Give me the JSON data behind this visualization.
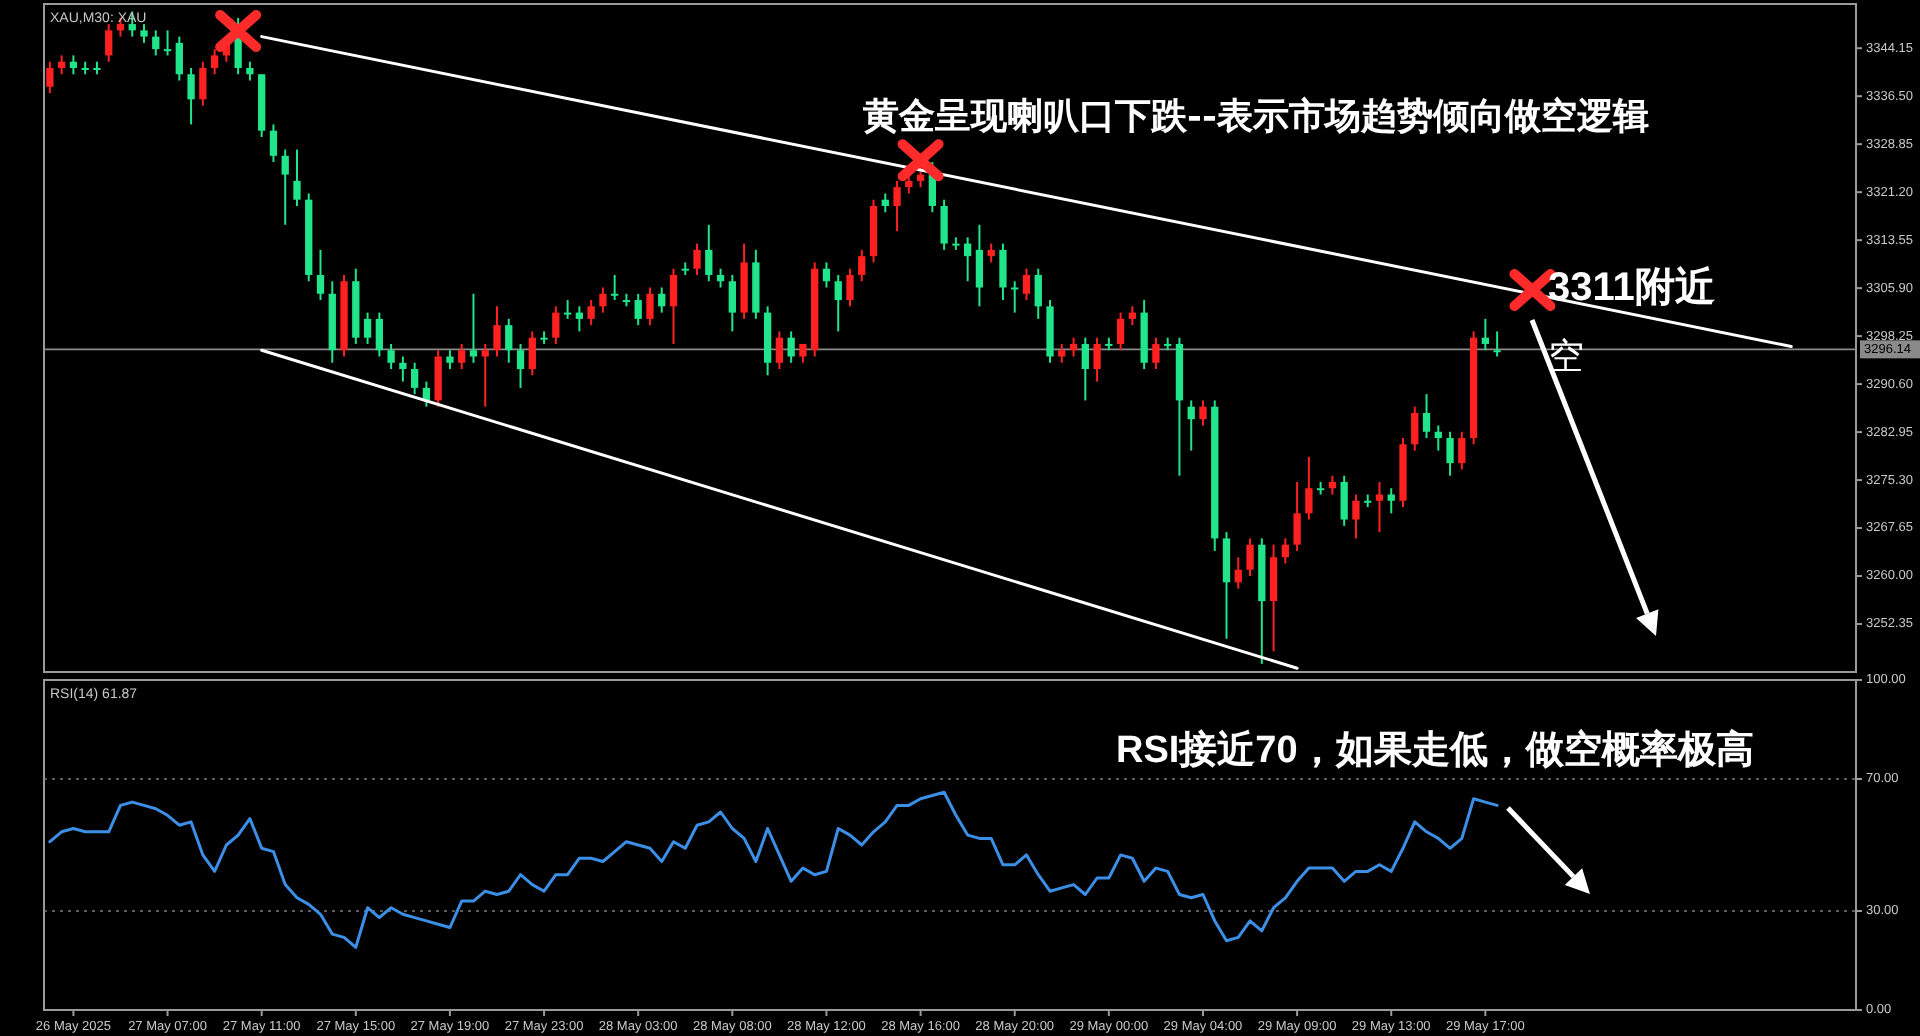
{
  "chart_data": [
    {
      "type": "candlestick",
      "title": "XAU,M30: XAU",
      "categories": [
        null,
        null,
        null,
        null,
        null,
        null,
        null,
        null,
        null,
        null,
        null,
        null,
        null,
        null,
        null,
        null,
        null,
        null,
        null,
        null,
        null,
        null,
        null,
        null,
        null,
        null,
        null,
        null,
        null,
        null,
        null,
        null,
        null,
        null,
        null,
        null,
        null,
        null,
        null,
        null,
        null,
        null,
        null,
        null,
        null,
        null,
        null,
        null,
        null,
        null,
        null,
        null,
        null,
        null,
        null,
        null,
        null,
        null,
        null,
        null,
        null,
        null,
        null,
        null,
        null,
        null,
        null,
        null,
        null,
        null,
        null,
        null,
        null,
        null,
        null,
        null,
        null,
        null,
        null,
        null,
        null,
        null,
        null,
        null,
        null,
        null,
        null,
        null,
        null,
        null,
        null,
        null,
        null,
        null,
        null,
        null,
        null,
        null,
        null,
        null,
        null,
        null,
        null,
        null,
        null,
        null,
        null,
        null,
        null,
        null,
        null,
        null,
        null,
        null,
        null,
        null,
        null,
        null,
        null,
        null,
        null,
        null,
        null,
        null,
        null,
        null,
        null,
        null,
        null,
        null,
        null,
        null,
        null,
        null,
        null,
        null,
        null,
        null,
        null,
        null,
        null,
        null,
        null,
        null,
        null,
        null,
        null,
        null,
        null,
        null,
        null,
        null,
        null,
        null
      ],
      "ylim": [
        3244.7,
        3351.2
      ],
      "yticks": [
        3344.15,
        {
          "value": 3336.5,
          "label": "3336.50"
        },
        3328.85,
        {
          "value": 3321.2,
          "label": "3321.20"
        },
        3313.55,
        {
          "value": 3305.9,
          "label": "3305.90"
        },
        3298.25,
        {
          "value": 3290.6,
          "label": "3290.60"
        },
        3282.95,
        {
          "value": 3275.3,
          "label": "3275.30"
        },
        3267.65,
        {
          "value": 3260,
          "label": "3260.00"
        },
        3252.35
      ],
      "tick_labels": "y",
      "series": [
        {
          "ohlc": [
            [
              3338,
              3342,
              3337,
              3341
            ],
            [
              3341,
              3343,
              3340,
              3342
            ],
            [
              3342,
              3343,
              3340,
              3341
            ],
            [
              3341,
              3342,
              3340,
              3341
            ],
            [
              3341,
              3342,
              3340,
              3341
            ],
            [
              3343,
              3348,
              3342,
              3347
            ],
            [
              3347,
              3349,
              3346,
              3348
            ],
            [
              3348,
              3350,
              3346,
              3347
            ],
            [
              3347,
              3348,
              3345,
              3346
            ],
            [
              3346,
              3347,
              3343,
              3344
            ],
            [
              3344,
              3347,
              3343,
              3344
            ],
            [
              3345,
              3346,
              3339,
              3340
            ],
            [
              3340,
              3341,
              3332,
              3336
            ],
            [
              3336,
              3342,
              3335,
              3341
            ],
            [
              3341,
              3344,
              3340,
              3343
            ],
            [
              3343,
              3346,
              3342,
              3345
            ],
            [
              3347,
              3349,
              3340,
              3341
            ],
            [
              3341,
              3342,
              3339,
              3340
            ],
            [
              3340,
              3340,
              3330,
              3331
            ],
            [
              3331,
              3332,
              3326,
              3327
            ],
            [
              3327,
              3328,
              3316,
              3324
            ],
            [
              3323,
              3328,
              3319,
              3320
            ],
            [
              3320,
              3321,
              3307,
              3308
            ],
            [
              3308,
              3312,
              3304,
              3305
            ],
            [
              3305,
              3307,
              3294,
              3296
            ],
            [
              3296,
              3308,
              3295,
              3307
            ],
            [
              3307,
              3309,
              3297,
              3298
            ],
            [
              3301,
              3302,
              3297,
              3298
            ],
            [
              3301,
              3302,
              3295,
              3296
            ],
            [
              3296,
              3297,
              3293,
              3294
            ],
            [
              3294,
              3295,
              3291,
              3293
            ],
            [
              3293,
              3294,
              3289,
              3290
            ],
            [
              3290,
              3291,
              3287,
              3288
            ],
            [
              3288,
              3296,
              3287,
              3295
            ],
            [
              3295,
              3296,
              3293,
              3294
            ],
            [
              3294,
              3297,
              3293,
              3296
            ],
            [
              3296,
              3305,
              3294,
              3295
            ],
            [
              3295,
              3297,
              3287,
              3296
            ],
            [
              3296,
              3303,
              3295,
              3300
            ],
            [
              3300,
              3301,
              3294,
              3296
            ],
            [
              3296,
              3297,
              3290,
              3293
            ],
            [
              3293,
              3299,
              3292,
              3298
            ],
            [
              3298,
              3299,
              3297,
              3298
            ],
            [
              3298,
              3303,
              3297,
              3302
            ],
            [
              3302,
              3304,
              3301,
              3302
            ],
            [
              3302,
              3303,
              3299,
              3301
            ],
            [
              3301,
              3304,
              3300,
              3303
            ],
            [
              3303,
              3306,
              3302,
              3305
            ],
            [
              3305,
              3308,
              3304,
              3305
            ],
            [
              3304,
              3305,
              3303,
              3304
            ],
            [
              3304,
              3305,
              3300,
              3301
            ],
            [
              3301,
              3306,
              3300,
              3305
            ],
            [
              3305,
              3306,
              3302,
              3303
            ],
            [
              3303,
              3309,
              3297,
              3308
            ],
            [
              3309,
              3310,
              3308,
              3309
            ],
            [
              3309,
              3313,
              3308,
              3312
            ],
            [
              3312,
              3316,
              3307,
              3308
            ],
            [
              3308,
              3309,
              3306,
              3307
            ],
            [
              3307,
              3308,
              3299,
              3302
            ],
            [
              3302,
              3313,
              3301,
              3310
            ],
            [
              3310,
              3312,
              3301,
              3302
            ],
            [
              3302,
              3303,
              3292,
              3294
            ],
            [
              3294,
              3299,
              3293,
              3298
            ],
            [
              3298,
              3299,
              3294,
              3295
            ],
            [
              3295,
              3297,
              3294,
              3297
            ],
            [
              3296,
              3310,
              3295,
              3309
            ],
            [
              3309,
              3310,
              3306,
              3307
            ],
            [
              3307,
              3308,
              3299,
              3304
            ],
            [
              3304,
              3309,
              3303,
              3308
            ],
            [
              3308,
              3312,
              3307,
              3311
            ],
            [
              3311,
              3320,
              3310,
              3319
            ],
            [
              3320,
              3321,
              3318,
              3319
            ],
            [
              3319,
              3323,
              3315,
              3322
            ],
            [
              3322,
              3325,
              3321,
              3323
            ],
            [
              3323,
              3326,
              3322,
              3324
            ],
            [
              3324,
              3326,
              3318,
              3319
            ],
            [
              3319,
              3320,
              3312,
              3313
            ],
            [
              3313,
              3314,
              3312,
              3313
            ],
            [
              3313,
              3314,
              3307,
              3311
            ],
            [
              3312,
              3316,
              3303,
              3306
            ],
            [
              3311,
              3313,
              3310,
              3312
            ],
            [
              3312,
              3313,
              3304,
              3306
            ],
            [
              3306,
              3307,
              3302,
              3306
            ],
            [
              3305,
              3309,
              3304,
              3308
            ],
            [
              3308,
              3309,
              3301,
              3303
            ],
            [
              3303,
              3304,
              3294,
              3295
            ],
            [
              3295,
              3297,
              3294,
              3296
            ],
            [
              3296,
              3298,
              3295,
              3297
            ],
            [
              3297,
              3298,
              3288,
              3293
            ],
            [
              3293,
              3298,
              3291,
              3297
            ],
            [
              3297,
              3298,
              3296,
              3297
            ],
            [
              3297,
              3302,
              3296,
              3301
            ],
            [
              3301,
              3303,
              3300,
              3302
            ],
            [
              3302,
              3304,
              3293,
              3294
            ],
            [
              3294,
              3298,
              3293,
              3297
            ],
            [
              3297,
              3298,
              3296,
              3297
            ],
            [
              3297,
              3298,
              3276,
              3288
            ],
            [
              3287,
              3288,
              3280,
              3285
            ],
            [
              3285,
              3288,
              3284,
              3287
            ],
            [
              3287,
              3288,
              3264,
              3266
            ],
            [
              3266,
              3267,
              3250,
              3259
            ],
            [
              3259,
              3263,
              3258,
              3261
            ],
            [
              3261,
              3266,
              3260,
              3265
            ],
            [
              3265,
              3266,
              3246,
              3256
            ],
            [
              3256,
              3265,
              3248,
              3263
            ],
            [
              3263,
              3266,
              3262,
              3265
            ],
            [
              3265,
              3275,
              3264,
              3270
            ],
            [
              3270,
              3279,
              3269,
              3274
            ],
            [
              3274,
              3275,
              3273,
              3274
            ],
            [
              3274,
              3276,
              3273,
              3275
            ],
            [
              3275,
              3276,
              3268,
              3269
            ],
            [
              3269,
              3273,
              3266,
              3272
            ],
            [
              3272,
              3273,
              3271,
              3272
            ],
            [
              3272,
              3275,
              3267,
              3273
            ],
            [
              3273,
              3274,
              3270,
              3272
            ],
            [
              3272,
              3282,
              3271,
              3281
            ],
            [
              3281,
              3287,
              3280,
              3286
            ],
            [
              3286,
              3289,
              3282,
              3283
            ],
            [
              3283,
              3284,
              3280,
              3282
            ],
            [
              3282,
              3283,
              3276,
              3278
            ],
            [
              3278,
              3283,
              3277,
              3282
            ],
            [
              3282,
              3299,
              3281,
              3298
            ],
            [
              3298,
              3301,
              3296,
              3297
            ],
            [
              3296,
              3299,
              3295,
              3296
            ],
            null,
            null,
            null,
            null,
            null,
            null,
            null,
            null,
            null,
            null,
            null,
            null,
            null,
            null,
            null,
            null,
            null,
            null,
            null,
            null,
            null,
            null,
            null,
            null,
            null,
            null,
            null,
            null,
            null,
            null
          ],
          "colors": [
            "#ff2020",
            "#ff2020",
            "#21e58b",
            "#21e58b",
            "#21e58b",
            "#ff2020",
            "#ff2020",
            "#21e58b",
            "#21e58b",
            "#21e58b",
            "#21e58b",
            "#21e58b",
            "#21e58b",
            "#ff2020",
            "#ff2020",
            "#ff2020",
            "#21e58b",
            "#21e58b",
            "#21e58b",
            "#21e58b",
            "#21e58b",
            "#21e58b",
            "#21e58b",
            "#21e58b",
            "#21e58b",
            "#ff2020",
            "#21e58b",
            "#21e58b",
            "#21e58b",
            "#21e58b",
            "#21e58b",
            "#21e58b",
            "#21e58b",
            "#ff2020",
            "#21e58b",
            "#ff2020",
            "#21e58b",
            "#ff2020",
            "#ff2020",
            "#21e58b",
            "#21e58b",
            "#ff2020",
            "#21e58b",
            "#ff2020",
            "#21e58b",
            "#21e58b",
            "#ff2020",
            "#ff2020",
            "#21e58b",
            "#21e58b",
            "#21e58b",
            "#ff2020",
            "#21e58b",
            "#ff2020",
            "#21e58b",
            "#ff2020",
            "#21e58b",
            "#21e58b",
            "#21e58b",
            "#ff2020",
            "#21e58b",
            "#21e58b",
            "#ff2020",
            "#21e58b",
            "#ff2020",
            "#ff2020",
            "#21e58b",
            "#21e58b",
            "#ff2020",
            "#ff2020",
            "#ff2020",
            "#21e58b",
            "#ff2020",
            "#ff2020",
            "#ff2020",
            "#21e58b",
            "#21e58b",
            "#21e58b",
            "#21e58b",
            "#21e58b",
            "#ff2020",
            "#21e58b",
            "#21e58b",
            "#ff2020",
            "#21e58b",
            "#21e58b",
            "#ff2020",
            "#ff2020",
            "#21e58b",
            "#ff2020",
            "#21e58b",
            "#ff2020",
            "#ff2020",
            "#21e58b",
            "#ff2020",
            "#21e58b",
            "#21e58b",
            "#21e58b",
            "#ff2020",
            "#21e58b",
            "#21e58b",
            "#ff2020",
            "#ff2020",
            "#21e58b",
            "#ff2020",
            "#ff2020",
            "#ff2020",
            "#ff2020",
            "#21e58b",
            "#ff2020",
            "#21e58b",
            "#ff2020",
            "#21e58b",
            "#ff2020",
            "#21e58b",
            "#ff2020",
            "#ff2020",
            "#21e58b",
            "#21e58b",
            "#21e58b",
            "#ff2020",
            "#ff2020",
            "#21e58b",
            "#21e58b",
            null,
            null,
            null,
            null,
            null,
            null,
            null,
            null,
            null,
            null,
            null,
            null,
            null,
            null,
            null,
            null,
            null,
            null,
            null,
            null,
            null,
            null,
            null,
            null,
            null,
            null,
            null,
            null,
            null,
            null
          ]
        },
        {
          "type": "line",
          "color": "#ffffff",
          "values": [
            null,
            null,
            null,
            null,
            null,
            null,
            null,
            null,
            null,
            null,
            null,
            null,
            null,
            null,
            null,
            null,
            null,
            null,
            3346,
            null,
            null,
            null,
            null,
            null,
            null,
            null,
            null,
            null,
            null,
            null,
            null,
            null,
            null,
            null,
            null,
            null,
            null,
            null,
            null,
            null,
            null,
            null,
            null,
            null,
            null,
            null,
            null,
            null,
            null,
            null,
            null,
            null,
            null,
            null,
            null,
            null,
            null,
            null,
            null,
            null,
            null,
            null,
            null,
            null,
            null,
            null,
            null,
            null,
            null,
            null,
            null,
            null,
            null,
            null,
            null,
            null,
            null,
            null,
            null,
            null,
            null,
            null,
            null,
            null,
            null,
            null,
            null,
            null,
            null,
            null,
            null,
            null,
            null,
            null,
            null,
            null,
            null,
            null,
            null,
            null,
            null,
            null,
            null,
            null,
            null,
            null,
            null,
            null,
            null,
            null,
            null,
            null,
            null,
            null,
            null,
            null,
            null,
            null,
            null,
            null,
            null,
            null,
            null,
            null,
            null,
            null,
            null,
            null,
            null,
            null,
            null,
            null,
            null,
            null,
            null,
            null,
            null,
            null,
            null,
            null,
            null,
            null,
            null,
            null,
            null,
            null,
            null,
            null,
            3296.6,
            null,
            null,
            null,
            null,
            null
          ]
        },
        {
          "type": "line",
          "color": "#ffffff",
          "values": [
            null,
            null,
            null,
            null,
            null,
            null,
            null,
            null,
            null,
            null,
            null,
            null,
            null,
            null,
            null,
            null,
            null,
            null,
            3296,
            null,
            null,
            null,
            null,
            null,
            null,
            null,
            null,
            null,
            null,
            null,
            null,
            null,
            null,
            null,
            null,
            null,
            null,
            null,
            null,
            null,
            null,
            null,
            null,
            null,
            null,
            null,
            null,
            null,
            null,
            null,
            null,
            null,
            null,
            null,
            null,
            null,
            null,
            null,
            null,
            null,
            null,
            null,
            null,
            null,
            null,
            null,
            null,
            null,
            null,
            null,
            null,
            null,
            null,
            null,
            null,
            null,
            null,
            null,
            null,
            null,
            null,
            null,
            null,
            null,
            null,
            null,
            null,
            null,
            null,
            null,
            null,
            null,
            null,
            null,
            null,
            null,
            null,
            null,
            null,
            null,
            null,
            null,
            null,
            null,
            null,
            null,
            3245.3,
            null,
            null,
            null,
            null,
            null,
            null,
            null,
            null,
            null,
            null,
            null,
            null,
            null,
            null,
            null,
            null,
            null,
            null,
            null,
            null,
            null,
            null,
            null,
            null,
            null,
            null,
            null,
            null,
            null,
            null,
            null,
            null,
            null,
            null,
            null,
            null,
            null,
            null,
            null,
            null,
            null,
            null,
            null,
            null,
            null,
            null,
            null
          ]
        },
        {
          "type": "scatter",
          "color": "#ff2a2a",
          "marker": "cross",
          "values": [
            null,
            null,
            null,
            null,
            null,
            null,
            null,
            null,
            null,
            null,
            null,
            null,
            null,
            null,
            null,
            null,
            3346.9,
            null,
            null,
            null,
            null,
            null,
            null,
            null,
            null,
            null,
            null,
            null,
            null,
            null,
            null,
            null,
            null,
            null,
            null,
            null,
            null,
            null,
            null,
            null,
            null,
            null,
            null,
            null,
            null,
            null,
            null,
            null,
            null,
            null,
            null,
            null,
            null,
            null,
            null,
            null,
            null,
            null,
            null,
            null,
            null,
            null,
            null,
            null,
            null,
            null,
            null,
            null,
            null,
            null,
            null,
            null,
            null,
            null,
            3326.3,
            null,
            null,
            null,
            null,
            null,
            null,
            null,
            null,
            null,
            null,
            null,
            null,
            null,
            null,
            null,
            null,
            null,
            null,
            null,
            null,
            null,
            null,
            null,
            null,
            null,
            null,
            null,
            null,
            null,
            null,
            null,
            null,
            null,
            null,
            null,
            null,
            null,
            null,
            null,
            null,
            null,
            null,
            null,
            null,
            null,
            null,
            null,
            null,
            null,
            null,
            null,
            3305.6,
            null,
            null,
            null,
            null,
            null,
            null,
            null,
            null,
            null,
            null,
            null,
            null,
            null,
            null,
            null,
            null,
            null,
            null,
            null,
            null,
            null,
            null,
            null,
            null,
            null,
            null,
            null
          ]
        }
      ],
      "ref_lines": [
        {
          "axis": "y",
          "value": 3296.14,
          "label": "3296.14",
          "color": "#8a8a8a"
        }
      ],
      "annotations": [
        "黄金呈现喇叭口下跌--表示市场趋势倾向做空逻辑",
        "3311附近",
        "空"
      ]
    },
    {
      "type": "line",
      "title": "RSI(14) 61.87",
      "categories": [
        null,
        null,
        "26 May 2025",
        null,
        null,
        null,
        null,
        null,
        null,
        null,
        "27 May 07:00",
        null,
        null,
        null,
        null,
        null,
        null,
        null,
        "27 May 11:00",
        null,
        null,
        null,
        null,
        null,
        null,
        null,
        "27 May 15:00",
        null,
        null,
        null,
        null,
        null,
        null,
        null,
        "27 May 19:00",
        null,
        null,
        null,
        null,
        null,
        null,
        null,
        "27 May 23:00",
        null,
        null,
        null,
        null,
        null,
        null,
        null,
        "28 May 03:00",
        null,
        null,
        null,
        null,
        null,
        null,
        null,
        "28 May 08:00",
        null,
        null,
        null,
        null,
        null,
        null,
        null,
        "28 May 12:00",
        null,
        null,
        null,
        null,
        null,
        null,
        null,
        "28 May 16:00",
        null,
        null,
        null,
        null,
        null,
        null,
        null,
        "28 May 20:00",
        null,
        null,
        null,
        null,
        null,
        null,
        null,
        "29 May 00:00",
        null,
        null,
        null,
        null,
        null,
        null,
        null,
        "29 May 04:00",
        null,
        null,
        null,
        null,
        null,
        null,
        null,
        "29 May 09:00",
        null,
        null,
        null,
        null,
        null,
        null,
        null,
        "29 May 13:00",
        null,
        null,
        null,
        null,
        null,
        null,
        null,
        "29 May 17:00",
        null,
        null,
        null,
        null,
        null,
        null,
        null,
        null,
        null,
        null,
        null,
        null,
        null,
        null,
        null,
        null,
        null,
        null,
        null,
        null,
        null,
        null,
        null,
        null,
        null,
        null,
        null,
        null,
        null,
        null,
        null
      ],
      "ylim": [
        0,
        100
      ],
      "yticks": [
        {
          "value": 100,
          "label": "100.00"
        },
        {
          "value": 70,
          "label": "70.00"
        },
        {
          "value": 30,
          "label": "30.00"
        },
        {
          "value": 0,
          "label": "0.00"
        }
      ],
      "series": [
        {
          "color": "#3b8fe6",
          "values": [
            51,
            54,
            55,
            54,
            54,
            54,
            62,
            63,
            62,
            61,
            59,
            56,
            57,
            47,
            42,
            50,
            53,
            58,
            49,
            48,
            38,
            34,
            32,
            29,
            23,
            22,
            19,
            31,
            28,
            31,
            29,
            28,
            27,
            26,
            25,
            33,
            33,
            36,
            35,
            36,
            41,
            38,
            36,
            41,
            41,
            46,
            46,
            45,
            48,
            51,
            50,
            49,
            45,
            51,
            49,
            56,
            57,
            60,
            55,
            52,
            45,
            55,
            47,
            39,
            43,
            41,
            42,
            55,
            53,
            50,
            54,
            57,
            62,
            62,
            64,
            65,
            66,
            59,
            53,
            52,
            52,
            44,
            44,
            47,
            41,
            36,
            37,
            38,
            35,
            40,
            40,
            47,
            46,
            39,
            43,
            42,
            35,
            34,
            35,
            27,
            21,
            22,
            27,
            24,
            31,
            34,
            39,
            43,
            43,
            43,
            39,
            42,
            42,
            44,
            42,
            49,
            57,
            54,
            52,
            49,
            52,
            64,
            63,
            62,
            null,
            null,
            null,
            null,
            null,
            null,
            null,
            null,
            null,
            null,
            null,
            null,
            null,
            null,
            null,
            null,
            null,
            null,
            null,
            null,
            null,
            null,
            null,
            null,
            null,
            null,
            null,
            null,
            null,
            null
          ]
        }
      ],
      "ref_lines": [
        {
          "axis": "y",
          "value": 70,
          "color": "#7a7a7a",
          "line_style": "dotted"
        },
        {
          "axis": "y",
          "value": 30,
          "color": "#7a7a7a",
          "line_style": "dotted"
        }
      ],
      "annotations": [
        "RSI接近70，如果走低，做空概率极高"
      ]
    }
  ]
}
